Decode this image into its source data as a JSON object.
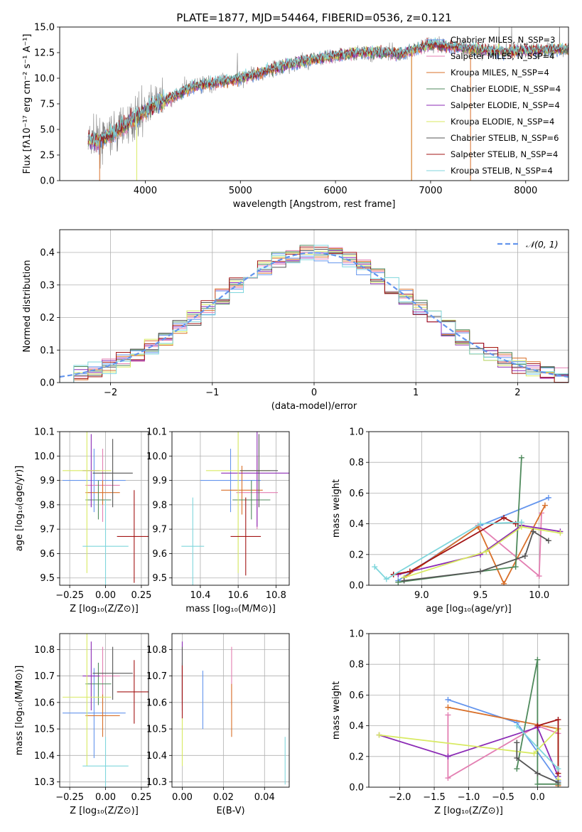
{
  "colors": {
    "blue": "#6495ed",
    "pink": "#e37fb2",
    "orange": "#d9702a",
    "green": "#4f8a5c",
    "purple": "#8b2ab5",
    "yellow": "#d8ea62",
    "gray": "#555555",
    "red": "#a31515",
    "cyan": "#7fd6dc",
    "spectrum": "#808080",
    "grid": "#b0b0b0"
  },
  "chart_data": [
    {
      "id": "spectrum",
      "type": "line",
      "title": "PLATE=1877, MJD=54464, FIBERID=0536, z=0.121",
      "xlabel": "wavelength [Angstrom, rest frame]",
      "ylabel": "Flux [fλ10⁻¹⁷ erg cm⁻² s⁻¹ A⁻¹]",
      "xlim": [
        3100,
        8450
      ],
      "ylim": [
        0,
        15
      ],
      "xticks": [
        "4000",
        "5000",
        "6000",
        "7000",
        "8000"
      ],
      "yticks": [
        "0.0",
        "2.5",
        "5.0",
        "7.5",
        "10.0",
        "12.5",
        "15.0"
      ],
      "grid": false,
      "legend_position": "top-right",
      "continuum_x": [
        3400,
        3500,
        3700,
        3900,
        4100,
        4300,
        4500,
        4800,
        5000,
        5200,
        5500,
        5800,
        6000,
        6300,
        6500,
        6700,
        6900,
        7000,
        7200,
        7400,
        7600,
        7800,
        8000,
        8300,
        8450
      ],
      "continuum_y": [
        4.0,
        3.8,
        4.8,
        6.2,
        7.4,
        8.2,
        9.2,
        9.7,
        10.0,
        10.5,
        11.3,
        11.9,
        12.2,
        12.5,
        12.5,
        12.4,
        13.0,
        13.3,
        13.1,
        12.9,
        12.7,
        12.6,
        12.7,
        12.8,
        12.8
      ],
      "series": [
        {
          "name": "Chabrier MILES, N_SSP=3",
          "color_key": "blue"
        },
        {
          "name": "Salpeter MILES, N_SSP=4",
          "color_key": "pink"
        },
        {
          "name": "Kroupa MILES, N_SSP=4",
          "color_key": "orange"
        },
        {
          "name": "Chabrier ELODIE, N_SSP=4",
          "color_key": "green"
        },
        {
          "name": "Salpeter ELODIE, N_SSP=4",
          "color_key": "purple"
        },
        {
          "name": "Kroupa ELODIE, N_SSP=4",
          "color_key": "yellow"
        },
        {
          "name": "Chabrier STELIB, N_SSP=6",
          "color_key": "gray"
        },
        {
          "name": "Salpeter STELIB, N_SSP=4",
          "color_key": "red"
        },
        {
          "name": "Kroupa STELIB, N_SSP=4",
          "color_key": "cyan"
        }
      ],
      "vertical_drops": [
        {
          "x": 3520,
          "color_key": "orange"
        },
        {
          "x": 3910,
          "color_key": "yellow"
        },
        {
          "x": 6800,
          "color_key": "yellow"
        },
        {
          "x": 6800,
          "color_key": "orange"
        },
        {
          "x": 7420,
          "color_key": "orange"
        }
      ]
    },
    {
      "id": "residuals",
      "type": "histogram",
      "xlabel": "(data-model)/error",
      "ylabel": "Normed distribution",
      "xlim": [
        -2.5,
        2.5
      ],
      "ylim": [
        0,
        0.47
      ],
      "xticks": [
        "−2",
        "−1",
        "0",
        "1",
        "2"
      ],
      "xtick_values": [
        -2,
        -1,
        0,
        1,
        2
      ],
      "yticks": [
        "0.0",
        "0.1",
        "0.2",
        "0.3",
        "0.4"
      ],
      "ytick_values": [
        0,
        0.1,
        0.2,
        0.3,
        0.4
      ],
      "grid": true,
      "legend_position": "top-right",
      "legend": "𝒩(0, 1)",
      "reference_curve": "normal(0,1)"
    },
    {
      "id": "age-vs-Z",
      "type": "errorbar",
      "xlabel": "Z [log₁₀(Z/Z⊙)]",
      "ylabel": "age  [log₁₀(age/yr)]",
      "xlim": [
        -0.32,
        0.3
      ],
      "ylim": [
        9.47,
        10.1
      ],
      "xticks": [
        "−0.25",
        "0.00",
        "0.25"
      ],
      "xtick_values": [
        -0.25,
        0,
        0.25
      ],
      "yticks": [
        "9.5",
        "9.6",
        "9.7",
        "9.8",
        "9.9",
        "10.0",
        "10.1"
      ],
      "ytick_values": [
        9.5,
        9.6,
        9.7,
        9.8,
        9.9,
        10.0,
        10.1
      ],
      "grid": true,
      "points": [
        {
          "c": "blue",
          "x": -0.08,
          "xe": 0.22,
          "y": 9.9,
          "ye": 0.13
        },
        {
          "c": "pink",
          "x": -0.02,
          "xe": 0.12,
          "y": 9.88,
          "ye": 0.15
        },
        {
          "c": "orange",
          "x": -0.02,
          "xe": 0.12,
          "y": 9.85,
          "ye": 0.05
        },
        {
          "c": "green",
          "x": -0.05,
          "xe": 0.09,
          "y": 9.82,
          "ye": 0.08
        },
        {
          "c": "purple",
          "x": -0.1,
          "xe": 0.06,
          "y": 9.94,
          "ye": 0.15
        },
        {
          "c": "yellow",
          "x": -0.13,
          "xe": 0.17,
          "y": 9.94,
          "ye": 0.42
        },
        {
          "c": "gray",
          "x": 0.05,
          "xe": 0.14,
          "y": 9.93,
          "ye": 0.14
        },
        {
          "c": "red",
          "x": 0.2,
          "xe": 0.12,
          "y": 9.67,
          "ye": 0.19
        },
        {
          "c": "cyan",
          "x": 0.0,
          "xe": 0.16,
          "y": 9.63,
          "ye": 0.19
        }
      ]
    },
    {
      "id": "age-vs-mass",
      "type": "errorbar",
      "xlabel": "mass [log₁₀(M/M⊙)]",
      "ylabel": "",
      "xlim": [
        10.25,
        10.87
      ],
      "ylim": [
        9.47,
        10.1
      ],
      "xticks": [
        "10.4",
        "10.6",
        "10.8"
      ],
      "xtick_values": [
        10.4,
        10.6,
        10.8
      ],
      "yticks": [
        "9.5",
        "9.6",
        "9.7",
        "9.8",
        "9.9",
        "10.0",
        "10.1"
      ],
      "ytick_values": [
        9.5,
        9.6,
        9.7,
        9.8,
        9.9,
        10.0,
        10.1
      ],
      "grid": true,
      "points": [
        {
          "c": "blue",
          "x": 10.56,
          "xe": 0.16,
          "y": 9.9,
          "ye": 0.13
        },
        {
          "c": "pink",
          "x": 10.7,
          "xe": 0.11,
          "y": 9.85,
          "ye": 0.15
        },
        {
          "c": "orange",
          "x": 10.62,
          "xe": 0.11,
          "y": 9.86,
          "ye": 0.1
        },
        {
          "c": "green",
          "x": 10.67,
          "xe": 0.1,
          "y": 9.82,
          "ye": 0.08
        },
        {
          "c": "purple",
          "x": 10.7,
          "xe": 0.19,
          "y": 9.93,
          "ye": 0.22
        },
        {
          "c": "yellow",
          "x": 10.6,
          "xe": 0.17,
          "y": 9.94,
          "ye": 0.42
        },
        {
          "c": "gray",
          "x": 10.71,
          "xe": 0.1,
          "y": 9.94,
          "ye": 0.15
        },
        {
          "c": "red",
          "x": 10.64,
          "xe": 0.08,
          "y": 9.67,
          "ye": 0.16
        },
        {
          "c": "cyan",
          "x": 10.36,
          "xe": 0.06,
          "y": 9.63,
          "ye": 0.2
        }
      ]
    },
    {
      "id": "weight-vs-age",
      "type": "line",
      "xlabel": "age  [log₁₀(age/yr)]",
      "ylabel": "mass weight",
      "xlim": [
        8.55,
        10.25
      ],
      "ylim": [
        0,
        1
      ],
      "xticks": [
        "9.0",
        "9.5",
        "10.0"
      ],
      "xtick_values": [
        9.0,
        9.5,
        10.0
      ],
      "yticks": [
        "0.0",
        "0.2",
        "0.4",
        "0.6",
        "0.8",
        "1.0"
      ],
      "ytick_values": [
        0,
        0.2,
        0.4,
        0.6,
        0.8,
        1.0
      ],
      "grid": true,
      "series": [
        {
          "c": "blue",
          "x": [
            8.8,
            9.5,
            10.08
          ],
          "y": [
            0.03,
            0.39,
            0.57
          ]
        },
        {
          "c": "pink",
          "x": [
            9.48,
            10.0,
            10.02
          ],
          "y": [
            0.39,
            0.06,
            0.47
          ]
        },
        {
          "c": "orange",
          "x": [
            8.85,
            9.48,
            9.7,
            10.05
          ],
          "y": [
            0.05,
            0.38,
            0.01,
            0.52
          ]
        },
        {
          "c": "green",
          "x": [
            8.8,
            9.8,
            9.85
          ],
          "y": [
            0.02,
            0.12,
            0.83
          ]
        },
        {
          "c": "purple",
          "x": [
            8.8,
            9.5,
            9.85,
            10.18
          ],
          "y": [
            0.07,
            0.2,
            0.39,
            0.35
          ]
        },
        {
          "c": "yellow",
          "x": [
            8.85,
            9.55,
            9.85,
            10.18
          ],
          "y": [
            0.05,
            0.22,
            0.38,
            0.34
          ]
        },
        {
          "c": "gray",
          "x": [
            8.85,
            9.5,
            9.88,
            9.95,
            10.08
          ],
          "y": [
            0.03,
            0.09,
            0.19,
            0.35,
            0.29
          ]
        },
        {
          "c": "red",
          "x": [
            8.76,
            8.9,
            9.7,
            9.8
          ],
          "y": [
            0.07,
            0.09,
            0.44,
            0.4
          ]
        },
        {
          "c": "cyan",
          "x": [
            8.6,
            8.7,
            9.5,
            9.85
          ],
          "y": [
            0.12,
            0.04,
            0.4,
            0.41
          ]
        }
      ]
    },
    {
      "id": "mass-vs-Z",
      "type": "errorbar",
      "xlabel": "Z [log₁₀(Z/Z⊙)]",
      "ylabel": "mass [log₁₀(M/M⊙)]",
      "xlim": [
        -0.32,
        0.3
      ],
      "ylim": [
        10.28,
        10.86
      ],
      "xticks": [
        "−0.25",
        "0.00",
        "0.25"
      ],
      "xtick_values": [
        -0.25,
        0,
        0.25
      ],
      "yticks": [
        "10.3",
        "10.4",
        "10.5",
        "10.6",
        "10.7",
        "10.8"
      ],
      "ytick_values": [
        10.3,
        10.4,
        10.5,
        10.6,
        10.7,
        10.8
      ],
      "grid": true,
      "points": [
        {
          "c": "blue",
          "x": -0.08,
          "xe": 0.22,
          "y": 10.56,
          "ye": 0.17
        },
        {
          "c": "pink",
          "x": -0.02,
          "xe": 0.12,
          "y": 10.7,
          "ye": 0.11
        },
        {
          "c": "orange",
          "x": -0.02,
          "xe": 0.12,
          "y": 10.55,
          "ye": 0.08
        },
        {
          "c": "green",
          "x": -0.05,
          "xe": 0.09,
          "y": 10.67,
          "ye": 0.08
        },
        {
          "c": "purple",
          "x": -0.1,
          "xe": 0.06,
          "y": 10.7,
          "ye": 0.13
        },
        {
          "c": "yellow",
          "x": -0.13,
          "xe": 0.17,
          "y": 10.62,
          "ye": 0.26
        },
        {
          "c": "gray",
          "x": 0.05,
          "xe": 0.14,
          "y": 10.71,
          "ye": 0.1
        },
        {
          "c": "red",
          "x": 0.2,
          "xe": 0.12,
          "y": 10.64,
          "ye": 0.12
        },
        {
          "c": "cyan",
          "x": 0.0,
          "xe": 0.16,
          "y": 10.36,
          "ye": 0.11
        }
      ]
    },
    {
      "id": "mass-vs-EBV",
      "type": "errorbar",
      "xlabel": "E(B-V)",
      "ylabel": "",
      "xlim": [
        -0.005,
        0.052
      ],
      "ylim": [
        10.28,
        10.86
      ],
      "xticks": [
        "0.00",
        "0.02",
        "0.04"
      ],
      "xtick_values": [
        0,
        0.02,
        0.04
      ],
      "yticks": [
        "10.3",
        "10.4",
        "10.5",
        "10.6",
        "10.7",
        "10.8"
      ],
      "ytick_values": [
        10.3,
        10.4,
        10.5,
        10.6,
        10.7,
        10.8
      ],
      "grid": true,
      "points": [
        {
          "c": "blue",
          "x": 0.01,
          "xe": 0,
          "y": 10.61,
          "ye": 0.11
        },
        {
          "c": "pink",
          "x": 0.024,
          "xe": 0,
          "y": 10.7,
          "ye": 0.11
        },
        {
          "c": "orange",
          "x": 0.024,
          "xe": 0,
          "y": 10.57,
          "ye": 0.1
        },
        {
          "c": "green",
          "x": 0.0,
          "xe": 0,
          "y": 10.67,
          "ye": 0.08
        },
        {
          "c": "purple",
          "x": 0.0,
          "xe": 0,
          "y": 10.7,
          "ye": 0.13
        },
        {
          "c": "yellow",
          "x": 0.0,
          "xe": 0,
          "y": 10.45,
          "ye": 0.09
        },
        {
          "c": "gray",
          "x": 0.0,
          "xe": 0,
          "y": 10.71,
          "ye": 0.1
        },
        {
          "c": "red",
          "x": 0.0,
          "xe": 0,
          "y": 10.64,
          "ye": 0.1
        },
        {
          "c": "cyan",
          "x": 0.05,
          "xe": 0,
          "y": 10.38,
          "ye": 0.09
        }
      ]
    },
    {
      "id": "weight-vs-Z",
      "type": "line",
      "xlabel": "Z [log₁₀(Z/Z⊙)]",
      "ylabel": "mass weight",
      "xlim": [
        -2.45,
        0.45
      ],
      "ylim": [
        0,
        1
      ],
      "xticks": [
        "−2.0",
        "−1.5",
        "−1.0",
        "−0.5",
        "0.0"
      ],
      "xtick_values": [
        -2.0,
        -1.5,
        -1.0,
        -0.5,
        0.0
      ],
      "yticks": [
        "0.0",
        "0.2",
        "0.4",
        "0.6",
        "0.8",
        "1.0"
      ],
      "ytick_values": [
        0,
        0.2,
        0.4,
        0.6,
        0.8,
        1.0
      ],
      "grid": true,
      "series": [
        {
          "c": "blue",
          "x": [
            -1.3,
            -0.3,
            0.3
          ],
          "y": [
            0.57,
            0.42,
            0.04
          ]
        },
        {
          "c": "pink",
          "x": [
            -1.3,
            -1.3,
            0.0,
            0.3
          ],
          "y": [
            0.47,
            0.06,
            0.4,
            0.35
          ]
        },
        {
          "c": "orange",
          "x": [
            -1.3,
            0.3,
            0.3
          ],
          "y": [
            0.52,
            0.38,
            0.01
          ]
        },
        {
          "c": "green",
          "x": [
            -0.3,
            0.0,
            0.0,
            0.3
          ],
          "y": [
            0.12,
            0.83,
            0.02,
            0.02
          ]
        },
        {
          "c": "purple",
          "x": [
            -2.3,
            -1.3,
            0.0,
            0.3
          ],
          "y": [
            0.34,
            0.2,
            0.39,
            0.07
          ]
        },
        {
          "c": "yellow",
          "x": [
            -2.3,
            -0.05,
            0.3,
            0.3
          ],
          "y": [
            0.34,
            0.22,
            0.38,
            0.05
          ]
        },
        {
          "c": "gray",
          "x": [
            -0.3,
            -0.3,
            0.0,
            0.3
          ],
          "y": [
            0.29,
            0.19,
            0.09,
            0.03
          ]
        },
        {
          "c": "red",
          "x": [
            0.0,
            0.3,
            0.3
          ],
          "y": [
            0.4,
            0.44,
            0.09
          ]
        },
        {
          "c": "cyan",
          "x": [
            -0.3,
            0.3
          ],
          "y": [
            0.4,
            0.12
          ]
        }
      ]
    }
  ]
}
